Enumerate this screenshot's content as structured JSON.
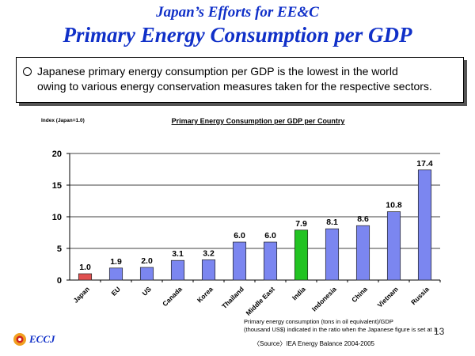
{
  "header": {
    "subtitle": "Japan’s Efforts for EE&C",
    "title": "Primary Energy Consumption per GDP"
  },
  "bullet": {
    "line1": "Japanese primary energy consumption per GDP is the lowest in the world",
    "line2": "owing to various energy conservation measures taken for the respective sectors."
  },
  "chart_data": {
    "type": "bar",
    "title": "Primary Energy Consumption per GDP per Country",
    "ylabel": "Index (Japan=1.0)",
    "xlabel": "",
    "ylim": [
      0,
      20
    ],
    "yticks": [
      0,
      5,
      10,
      15,
      20
    ],
    "categories": [
      "Japan",
      "EU",
      "US",
      "Canada",
      "Korea",
      "Thailand",
      "Middle East",
      "India",
      "Indonesia",
      "China",
      "Vietnam",
      "Russia"
    ],
    "values": [
      1.0,
      1.9,
      2.0,
      3.1,
      3.2,
      6.0,
      6.0,
      7.9,
      8.1,
      8.6,
      10.8,
      17.4
    ],
    "value_labels": [
      "1.0",
      "1.9",
      "2.0",
      "3.1",
      "3.2",
      "6.0",
      "6.0",
      "7.9",
      "8.1",
      "8.6",
      "10.8",
      "17.4"
    ],
    "grid": true,
    "colors": {
      "default": "#7b86f0",
      "Japan": "#e05050",
      "India": "#22c322"
    }
  },
  "footnote": {
    "line1": "Primary energy consumption (tons in oil equivalent)/GDP",
    "line2": "(thousand US$) indicated in the ratio when the Japanese figure is set at 1."
  },
  "source": "〈Source〉IEA Energy Balance 2004-2005",
  "page_number": "13",
  "logo": {
    "text": "ECCJ",
    "icon": "sun-icon"
  }
}
